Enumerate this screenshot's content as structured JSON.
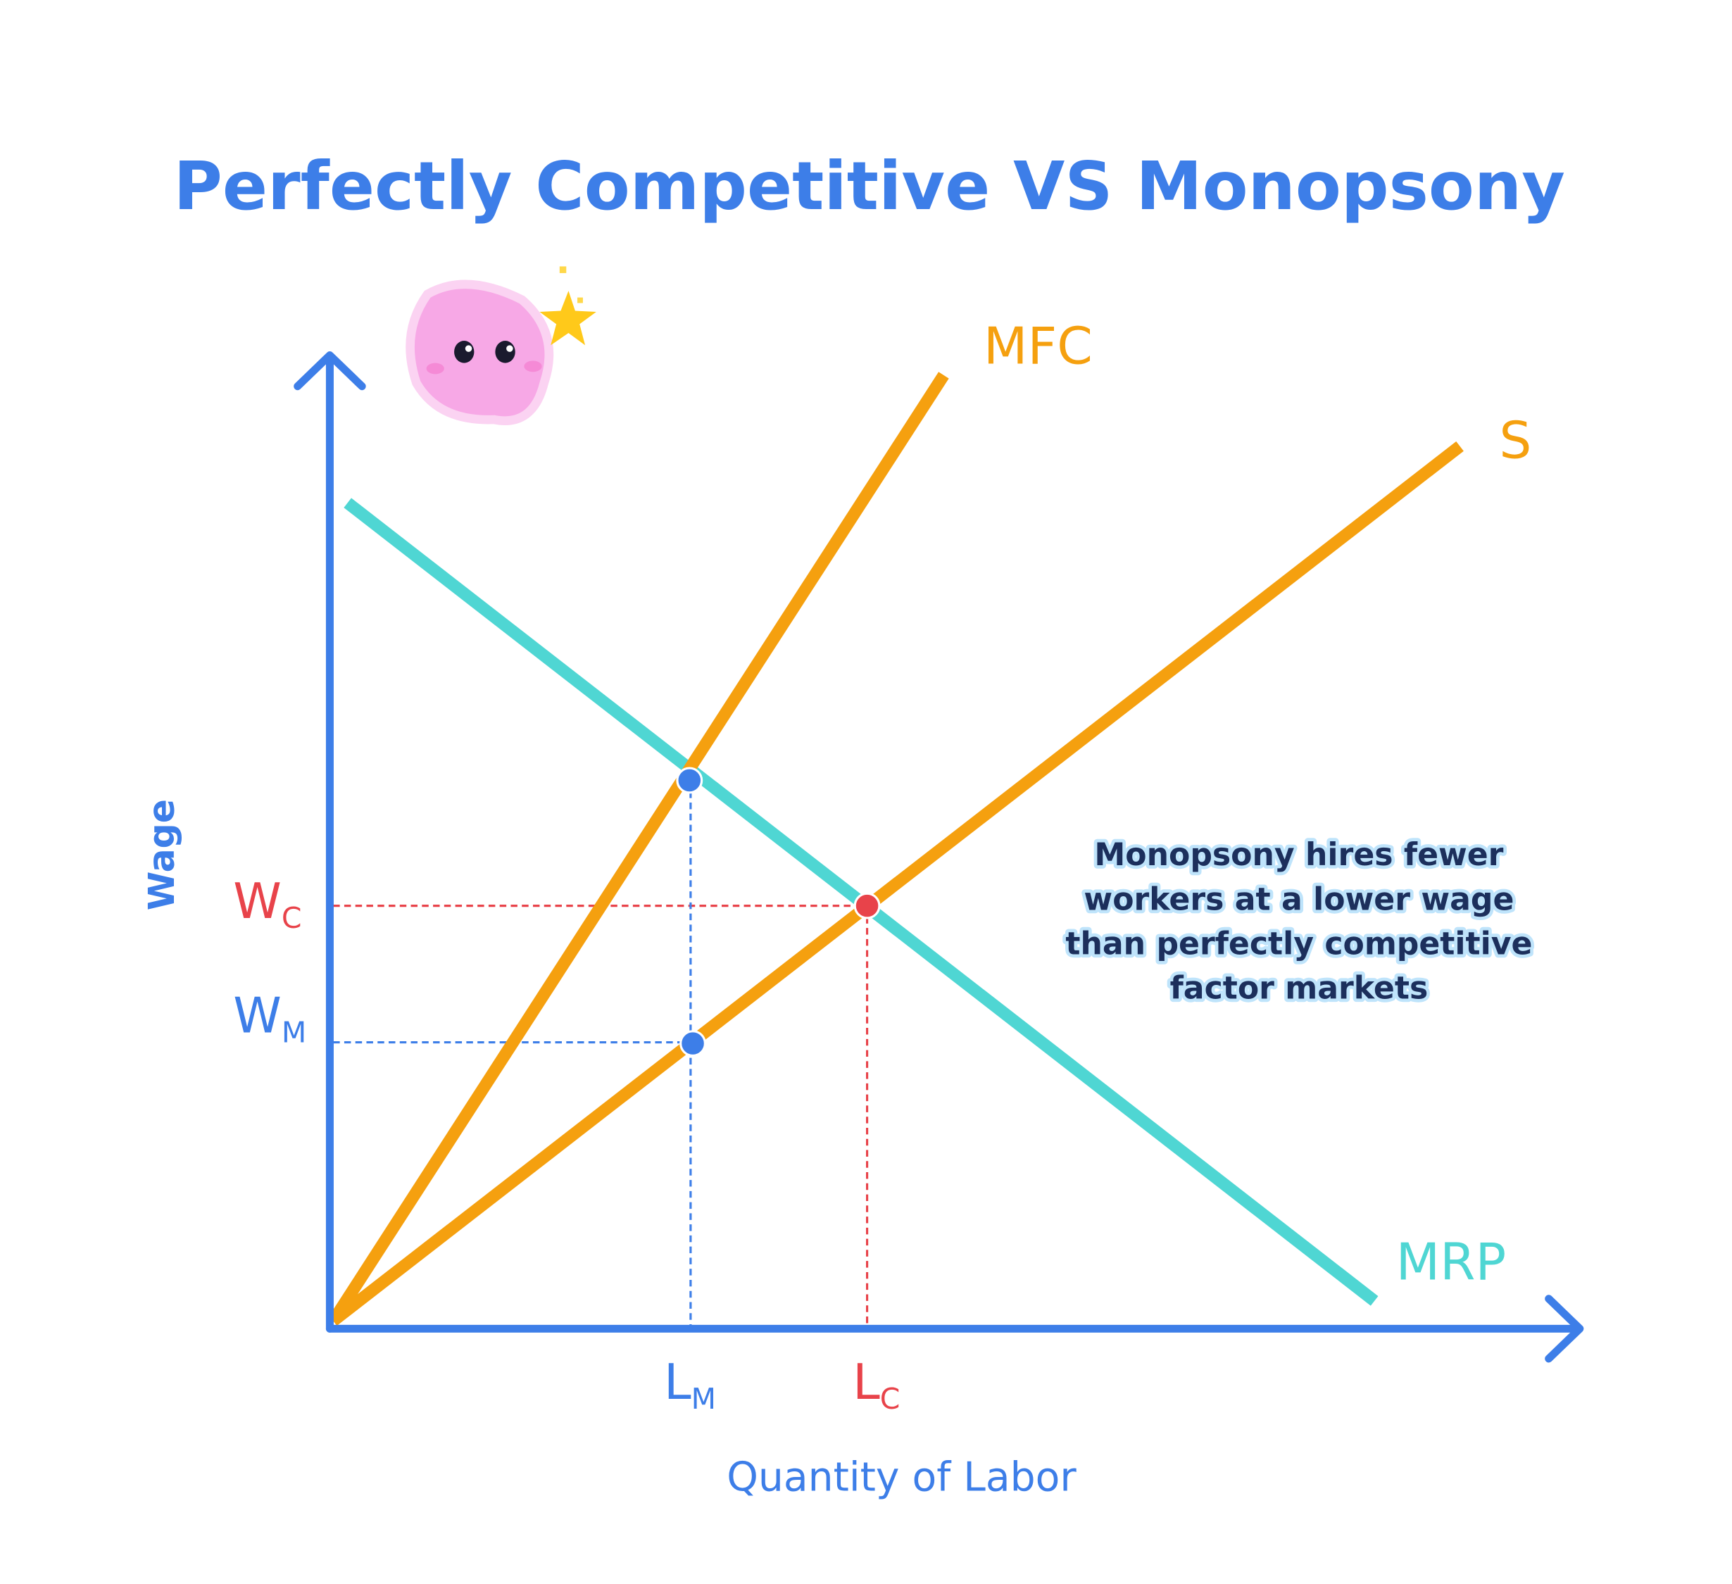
{
  "title": "Perfectly Competitive VS Monopsony",
  "axes": {
    "y_label": "Wage",
    "x_label": "Quantity of Labor"
  },
  "curves": {
    "mfc": "MFC",
    "s": "S",
    "mrp": "MRP"
  },
  "points": {
    "wc": {
      "main": "W",
      "sub": "C"
    },
    "wm": {
      "main": "W",
      "sub": "M"
    },
    "lm": {
      "main": "L",
      "sub": "M"
    },
    "lc": {
      "main": "L",
      "sub": "C"
    }
  },
  "annotation": [
    "Monopsony hires fewer",
    "workers at a lower wage",
    "than perfectly competitive",
    "factor markets"
  ]
}
